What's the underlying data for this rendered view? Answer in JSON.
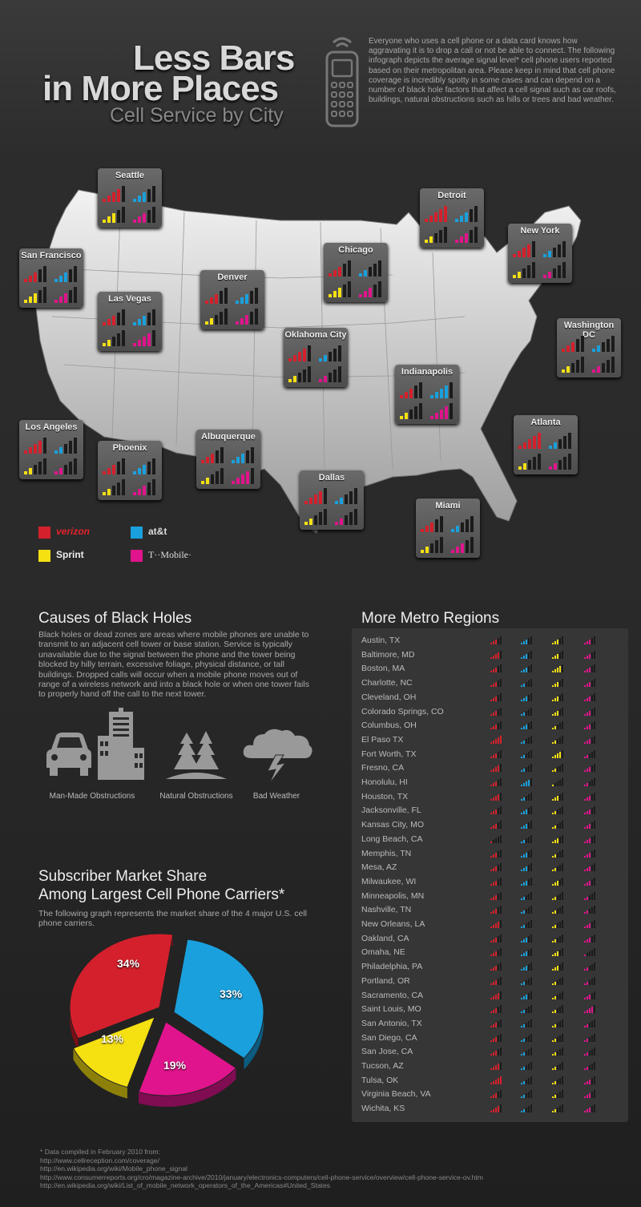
{
  "header": {
    "title_line1": "Less Bars",
    "title_line2": "in More Places",
    "subtitle": "Cell Service by City",
    "intro": "Everyone who uses a cell phone or a data card knows how aggravating it is to drop a call or not be able to connect. The following infograph depicts the average signal level* cell phone users reported based on their metropolitan area. Please keep in mind that cell phone coverage is incredibly spotty in some cases and can depend on a number of black hole factors that affect a cell signal such as car roofs, buildings, natural obstructions such as hills or trees and bad weather."
  },
  "colors": {
    "verizon": "#d4202c",
    "att": "#1aa0dc",
    "sprint": "#f5e012",
    "tmobile": "#e0148c",
    "bar_off": "#1b1b1b"
  },
  "cities": [
    {
      "name": "Seattle",
      "bars": [
        4,
        3,
        3,
        3
      ]
    },
    {
      "name": "Detroit",
      "bars": [
        5,
        3,
        2,
        3
      ]
    },
    {
      "name": "San Francisco",
      "bars": [
        3,
        3,
        3,
        3
      ]
    },
    {
      "name": "New York",
      "bars": [
        4,
        2,
        2,
        2
      ]
    },
    {
      "name": "Chicago",
      "bars": [
        3,
        2,
        3,
        3
      ]
    },
    {
      "name": "Denver",
      "bars": [
        3,
        3,
        2,
        3
      ]
    },
    {
      "name": "Las Vegas",
      "bars": [
        3,
        3,
        2,
        4
      ]
    },
    {
      "name": "Oklahoma City",
      "bars": [
        4,
        2,
        2,
        2
      ]
    },
    {
      "name": "Washington DC",
      "bars": [
        3,
        2,
        2,
        2
      ]
    },
    {
      "name": "Indianapolis",
      "bars": [
        3,
        4,
        2,
        4
      ]
    },
    {
      "name": "Los Angeles",
      "bars": [
        4,
        2,
        2,
        2
      ]
    },
    {
      "name": "Atlanta",
      "bars": [
        5,
        2,
        2,
        2
      ]
    },
    {
      "name": "Albuquerque",
      "bars": [
        3,
        3,
        2,
        4
      ]
    },
    {
      "name": "Phoenix",
      "bars": [
        3,
        3,
        2,
        3
      ]
    },
    {
      "name": "Dallas",
      "bars": [
        4,
        2,
        2,
        2
      ]
    },
    {
      "name": "Miami",
      "bars": [
        3,
        2,
        2,
        3
      ]
    }
  ],
  "legend": {
    "verizon": "verizon",
    "att": "at&t",
    "sprint": "Sprint",
    "tmobile": "T··Mobile·"
  },
  "black_holes": {
    "heading": "Causes of Black Holes",
    "text": "Black holes or dead zones are areas where mobile phones are unable to transmit to an adjacent cell tower or base station. Service is typically unavailable due to the signal between the phone and the tower being blocked by hilly terrain, excessive foliage, physical distance, or tall buildings. Dropped calls will occur when a mobile phone moves out of range of a wireless network and into a black hole or when one tower fails to properly hand off the call to the next tower.",
    "captions": [
      "Man-Made Obstructions",
      "Natural Obstructions",
      "Bad Weather"
    ],
    "icons": [
      "car-icon",
      "buildings-icon",
      "trees-icon",
      "storm-cloud-icon"
    ]
  },
  "market_share": {
    "heading_line1": "Subscriber Market Share",
    "heading_line2": "Among Largest Cell Phone Carriers*",
    "text": "The following graph represents the market share of the 4 major U.S. cell phone carriers."
  },
  "chart_data": {
    "type": "pie",
    "title": "",
    "slices": [
      {
        "carrier": "verizon",
        "value": 34,
        "label": "34%",
        "color": "#d4202c"
      },
      {
        "carrier": "att",
        "value": 33,
        "label": "33%",
        "color": "#1aa0dc"
      },
      {
        "carrier": "tmobile",
        "value": 19,
        "label": "19%",
        "color": "#e0148c"
      },
      {
        "carrier": "sprint",
        "value": 13,
        "label": "13%",
        "color": "#f5e012"
      }
    ]
  },
  "metro": {
    "heading": "More Metro Regions",
    "rows": [
      {
        "name": "Austin, TX",
        "bars": [
          3,
          3,
          3,
          3
        ]
      },
      {
        "name": "Baltimore, MD",
        "bars": [
          4,
          3,
          3,
          3
        ]
      },
      {
        "name": "Boston, MA",
        "bars": [
          3,
          3,
          4,
          3
        ]
      },
      {
        "name": "Charlotte, NC",
        "bars": [
          3,
          2,
          3,
          3
        ]
      },
      {
        "name": "Cleveland, OH",
        "bars": [
          3,
          3,
          3,
          3
        ]
      },
      {
        "name": "Colorado Springs, CO",
        "bars": [
          3,
          2,
          3,
          3
        ]
      },
      {
        "name": "Columbus, OH",
        "bars": [
          3,
          3,
          2,
          3
        ]
      },
      {
        "name": "El Paso TX",
        "bars": [
          5,
          2,
          2,
          3
        ]
      },
      {
        "name": "Fort Worth, TX",
        "bars": [
          3,
          2,
          4,
          2
        ]
      },
      {
        "name": "Fresno, CA",
        "bars": [
          4,
          2,
          2,
          3
        ]
      },
      {
        "name": "Honolulu, HI",
        "bars": [
          3,
          4,
          1,
          2
        ]
      },
      {
        "name": "Houston, TX",
        "bars": [
          4,
          2,
          3,
          3
        ]
      },
      {
        "name": "Jacksonville, FL",
        "bars": [
          3,
          3,
          2,
          3
        ]
      },
      {
        "name": "Kansas City, MO",
        "bars": [
          3,
          3,
          2,
          3
        ]
      },
      {
        "name": "Long Beach, CA",
        "bars": [
          1,
          2,
          3,
          3
        ]
      },
      {
        "name": "Memphis, TN",
        "bars": [
          3,
          3,
          2,
          3
        ]
      },
      {
        "name": "Mesa, AZ",
        "bars": [
          3,
          3,
          2,
          3
        ]
      },
      {
        "name": "Milwaukee, WI",
        "bars": [
          3,
          3,
          3,
          3
        ]
      },
      {
        "name": "Minneapolis, MN",
        "bars": [
          3,
          2,
          2,
          2
        ]
      },
      {
        "name": "Nashville, TN",
        "bars": [
          3,
          2,
          2,
          2
        ]
      },
      {
        "name": "New Orleans, LA",
        "bars": [
          4,
          2,
          2,
          3
        ]
      },
      {
        "name": "Oakland, CA",
        "bars": [
          3,
          3,
          2,
          3
        ]
      },
      {
        "name": "Omaha, NE",
        "bars": [
          3,
          3,
          3,
          1
        ]
      },
      {
        "name": "Philadelphia, PA",
        "bars": [
          3,
          3,
          3,
          2
        ]
      },
      {
        "name": "Portland, OR",
        "bars": [
          3,
          2,
          2,
          2
        ]
      },
      {
        "name": "Sacramento, CA",
        "bars": [
          4,
          3,
          2,
          3
        ]
      },
      {
        "name": "Saint Louis, MO",
        "bars": [
          3,
          2,
          2,
          4
        ]
      },
      {
        "name": "San Antonio, TX",
        "bars": [
          3,
          2,
          2,
          2
        ]
      },
      {
        "name": "San Diego, CA",
        "bars": [
          3,
          2,
          2,
          2
        ]
      },
      {
        "name": "San Jose, CA",
        "bars": [
          3,
          2,
          2,
          2
        ]
      },
      {
        "name": "Tucson, AZ",
        "bars": [
          4,
          2,
          2,
          2
        ]
      },
      {
        "name": "Tulsa, OK",
        "bars": [
          5,
          2,
          2,
          3
        ]
      },
      {
        "name": "Virginia Beach, VA",
        "bars": [
          3,
          2,
          2,
          3
        ]
      },
      {
        "name": "Wichita, KS",
        "bars": [
          4,
          2,
          2,
          3
        ]
      }
    ]
  },
  "footnote": {
    "lines": [
      "* Data compiled in February 2010 from:",
      "http://www.cellreception.com/coverage/",
      "http://en.wikipedia.org/wiki/Mobile_phone_signal",
      "http://www.consumerreports.org/cro/magazine-archive/2010/january/electronics-computers/cell-phone-service/overview/cell-phone-service-ov.htm",
      "http://en.wikipedia.org/wiki/List_of_mobile_network_operators_of_the_Americas#United_States"
    ]
  }
}
